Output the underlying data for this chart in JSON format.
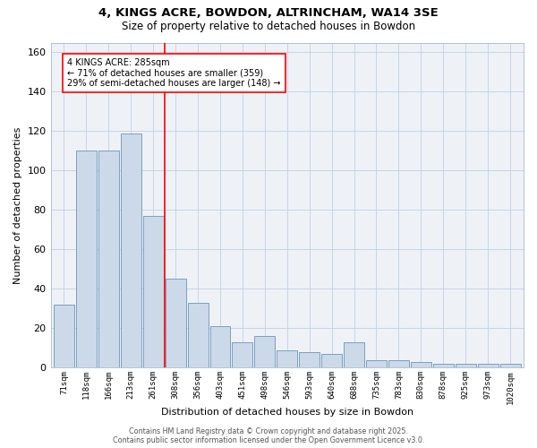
{
  "title_line1": "4, KINGS ACRE, BOWDON, ALTRINCHAM, WA14 3SE",
  "title_line2": "Size of property relative to detached houses in Bowdon",
  "xlabel": "Distribution of detached houses by size in Bowdon",
  "ylabel": "Number of detached properties",
  "bar_color": "#ccd9e8",
  "bar_edge_color": "#7aa0c0",
  "categories": [
    "71sqm",
    "118sqm",
    "166sqm",
    "213sqm",
    "261sqm",
    "308sqm",
    "356sqm",
    "403sqm",
    "451sqm",
    "498sqm",
    "546sqm",
    "593sqm",
    "640sqm",
    "688sqm",
    "735sqm",
    "783sqm",
    "830sqm",
    "878sqm",
    "925sqm",
    "973sqm",
    "1020sqm"
  ],
  "values": [
    32,
    110,
    110,
    119,
    77,
    45,
    33,
    21,
    13,
    16,
    9,
    8,
    7,
    13,
    4,
    4,
    3,
    2,
    2,
    2,
    2
  ],
  "ylim": [
    0,
    165
  ],
  "yticks": [
    0,
    20,
    40,
    60,
    80,
    100,
    120,
    140,
    160
  ],
  "annotation_text": "4 KINGS ACRE: 285sqm\n← 71% of detached houses are smaller (359)\n29% of semi-detached houses are larger (148) →",
  "vline_idx": 4,
  "grid_color": "#c5d5e5",
  "bg_color": "#eef2f7",
  "footer_line1": "Contains HM Land Registry data © Crown copyright and database right 2025.",
  "footer_line2": "Contains public sector information licensed under the Open Government Licence v3.0."
}
